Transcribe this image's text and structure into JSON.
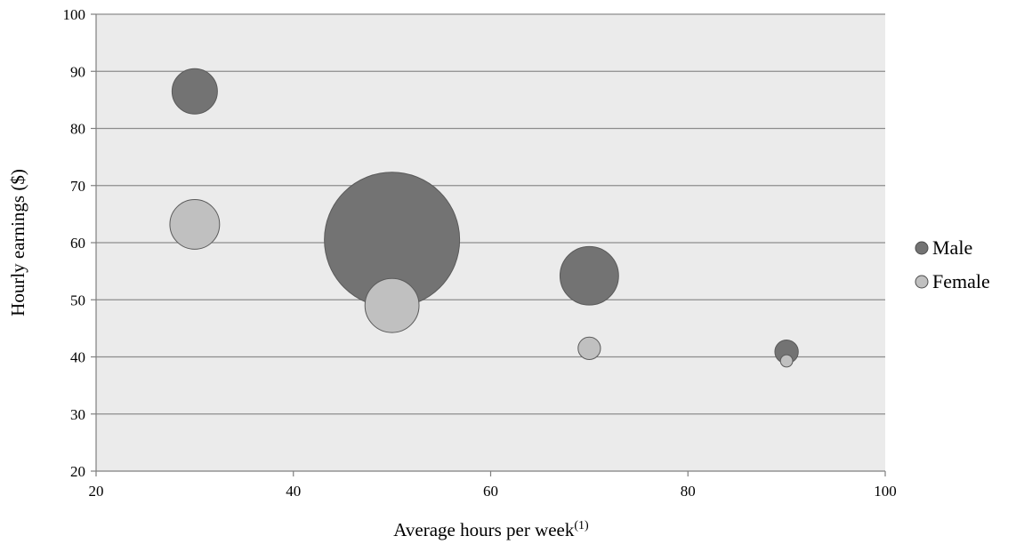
{
  "chart_data": {
    "type": "bubble",
    "title": "",
    "xlabel": "Average hours per week",
    "xlabel_superscript": "(1)",
    "ylabel": "Hourly earnings ($)",
    "xlim": [
      20,
      100
    ],
    "ylim": [
      20,
      100
    ],
    "x_ticks": [
      20,
      40,
      60,
      80,
      100
    ],
    "y_ticks": [
      20,
      30,
      40,
      50,
      60,
      70,
      80,
      90,
      100
    ],
    "grid": "horizontal",
    "plot_background": "#ebebeb",
    "legend_position": "right",
    "series": [
      {
        "name": "Male",
        "color": "#737373",
        "points": [
          {
            "x": 30,
            "y": 86.5,
            "size": 45
          },
          {
            "x": 50,
            "y": 60.5,
            "size": 400
          },
          {
            "x": 70,
            "y": 54.2,
            "size": 75
          },
          {
            "x": 90,
            "y": 40.9,
            "size": 12
          }
        ]
      },
      {
        "name": "Female",
        "color": "#c0c0c0",
        "points": [
          {
            "x": 30,
            "y": 63.2,
            "size": 54
          },
          {
            "x": 50,
            "y": 49.0,
            "size": 64
          },
          {
            "x": 70,
            "y": 41.5,
            "size": 11
          },
          {
            "x": 90,
            "y": 39.3,
            "size": 3.3
          }
        ]
      }
    ]
  }
}
